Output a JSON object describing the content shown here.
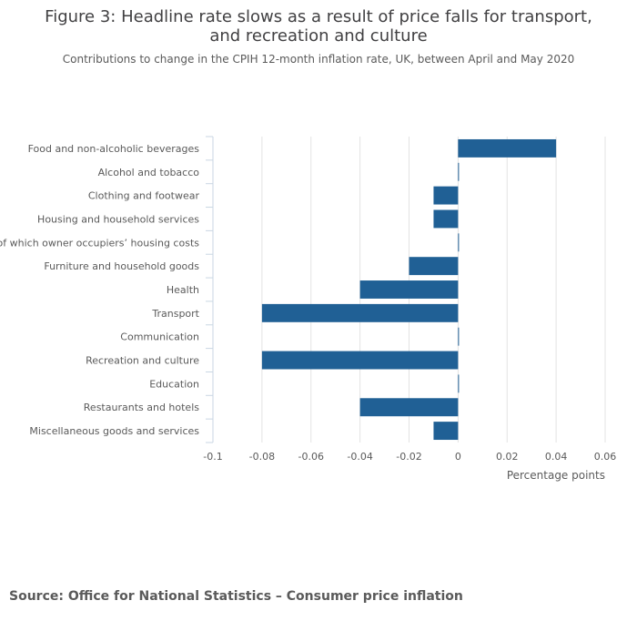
{
  "title": "Figure 3: Headline rate slows as a result of price falls for transport, and recreation and culture",
  "subtitle": "Contributions to change in the CPIH 12-month inflation rate, UK, between April and May 2020",
  "source": "Source: Office for National Statistics – Consumer price inflation",
  "colors": {
    "bar": "#206095",
    "grid": "#e3e3e3",
    "axis": "#c9d6e3",
    "label": "#5a5a5a"
  },
  "chart_data": {
    "type": "bar",
    "orientation": "horizontal",
    "categories": [
      "Food and non-alcoholic beverages",
      "Alcohol and tobacco",
      "Clothing and footwear",
      "Housing and household services",
      "of which owner occupiers’ housing costs",
      "Furniture and household goods",
      "Health",
      "Transport",
      "Communication",
      "Recreation and culture",
      "Education",
      "Restaurants and hotels",
      "Miscellaneous goods and services"
    ],
    "values": [
      0.04,
      0,
      -0.01,
      -0.01,
      0,
      -0.02,
      -0.04,
      -0.08,
      0,
      -0.08,
      0,
      -0.04,
      -0.01
    ],
    "xlim": [
      -0.1,
      0.06
    ],
    "xticks": [
      -0.1,
      -0.08,
      -0.06,
      -0.04,
      -0.02,
      0,
      0.02,
      0.04,
      0.06
    ],
    "xtick_labels": [
      "-0.1",
      "-0.08",
      "-0.06",
      "-0.04",
      "-0.02",
      "0",
      "0.02",
      "0.04",
      "0.06"
    ],
    "xlabel": "Percentage points",
    "ylabel": ""
  }
}
